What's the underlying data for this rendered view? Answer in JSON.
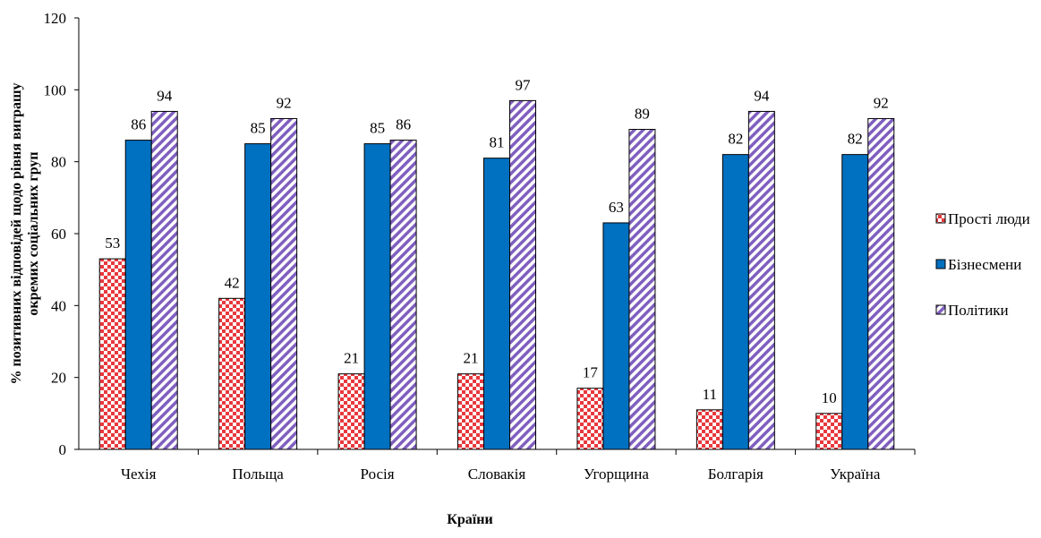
{
  "chart_data": {
    "type": "bar",
    "categories": [
      "Чехія",
      "Польща",
      "Росія",
      "Словакія",
      "Угорщина",
      "Болгарія",
      "Україна"
    ],
    "series": [
      {
        "name": "Прості люди",
        "values": [
          53,
          42,
          21,
          21,
          17,
          11,
          10
        ],
        "color": "#e8383d",
        "pattern": "checker"
      },
      {
        "name": "Бізнесмени",
        "values": [
          86,
          85,
          85,
          81,
          63,
          82,
          82
        ],
        "color": "#0070c0",
        "pattern": "solid"
      },
      {
        "name": "Політики",
        "values": [
          94,
          92,
          86,
          97,
          89,
          94,
          92
        ],
        "color": "#7f5fbf",
        "pattern": "diagonal"
      }
    ],
    "ylim": [
      0,
      120
    ],
    "yticks": [
      0,
      20,
      40,
      60,
      80,
      100,
      120
    ],
    "xlabel": "Країни",
    "ylabel_line1": "% позитивних відповідей щодо рівня виграшу",
    "ylabel_line2": "окремих соціальних груп",
    "legend_position": "right",
    "grid": false,
    "data_labels": true
  }
}
